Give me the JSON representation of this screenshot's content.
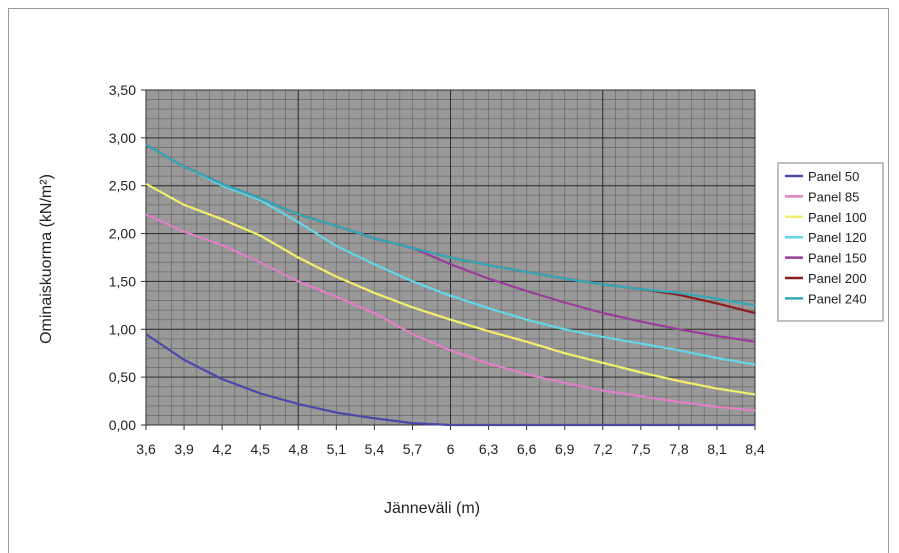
{
  "chart_data": {
    "type": "line",
    "title": "",
    "xlabel": "Jänneväli (m)",
    "ylabel": "Ominaiskuorma (kN/m²)",
    "x": [
      3.6,
      3.9,
      4.2,
      4.5,
      4.8,
      5.1,
      5.4,
      5.7,
      6.0,
      6.3,
      6.6,
      6.9,
      7.2,
      7.5,
      7.8,
      8.1,
      8.4
    ],
    "x_tick_labels": [
      "3,6",
      "3,9",
      "4,2",
      "4,5",
      "4,8",
      "5,1",
      "5,4",
      "5,7",
      "6",
      "6,3",
      "6,6",
      "6,9",
      "7,2",
      "7,5",
      "7,8",
      "8,1",
      "8,4"
    ],
    "y_tick_labels": [
      "0,00",
      "0,50",
      "1,00",
      "1,50",
      "2,00",
      "2,50",
      "3,00",
      "3,50"
    ],
    "ylim": [
      0,
      3.5
    ],
    "grid": true,
    "legend_position": "right",
    "series": [
      {
        "name": "Panel 50",
        "color": "#4a4aa6",
        "values": [
          0.95,
          0.68,
          0.48,
          0.33,
          0.22,
          0.13,
          0.07,
          0.02,
          0.0,
          0.0,
          0.0,
          0.0,
          0.0,
          0.0,
          0.0,
          0.0,
          0.0
        ]
      },
      {
        "name": "Panel 85",
        "color": "#e07fc4",
        "values": [
          2.2,
          2.02,
          1.88,
          1.7,
          1.5,
          1.34,
          1.17,
          0.95,
          0.78,
          0.64,
          0.53,
          0.44,
          0.36,
          0.3,
          0.24,
          0.19,
          0.15
        ]
      },
      {
        "name": "Panel 100",
        "color": "#f2ef6a",
        "values": [
          2.52,
          2.3,
          2.15,
          1.98,
          1.75,
          1.55,
          1.38,
          1.23,
          1.1,
          0.98,
          0.87,
          0.75,
          0.65,
          0.55,
          0.46,
          0.38,
          0.32
        ]
      },
      {
        "name": "Panel 120",
        "color": "#62d6e6",
        "values": [
          2.93,
          2.7,
          2.5,
          2.35,
          2.12,
          1.87,
          1.68,
          1.5,
          1.35,
          1.22,
          1.1,
          1.0,
          0.92,
          0.85,
          0.78,
          0.7,
          0.63
        ]
      },
      {
        "name": "Panel 150",
        "color": "#9a3d9a",
        "values": [
          2.93,
          2.7,
          2.52,
          2.37,
          2.2,
          2.08,
          1.95,
          1.85,
          1.68,
          1.53,
          1.4,
          1.28,
          1.17,
          1.08,
          1.0,
          0.93,
          0.87
        ]
      },
      {
        "name": "Panel 200",
        "color": "#8b1f1f",
        "values": [
          2.93,
          2.7,
          2.52,
          2.37,
          2.2,
          2.08,
          1.95,
          1.85,
          1.75,
          1.67,
          1.6,
          1.53,
          1.47,
          1.42,
          1.36,
          1.27,
          1.17
        ]
      },
      {
        "name": "Panel 240",
        "color": "#33a8b6",
        "values": [
          2.93,
          2.7,
          2.52,
          2.37,
          2.2,
          2.08,
          1.95,
          1.85,
          1.75,
          1.67,
          1.6,
          1.53,
          1.47,
          1.42,
          1.38,
          1.32,
          1.25
        ]
      }
    ]
  }
}
